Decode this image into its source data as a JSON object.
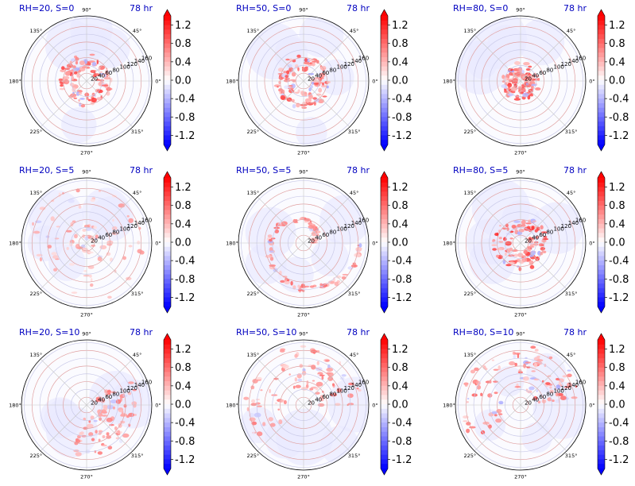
{
  "chart_data": {
    "type": "polar-contour-grid",
    "rows": 3,
    "cols": 3,
    "radial_ticks": [
      "20",
      "40",
      "60",
      "80",
      "100",
      "120",
      "140",
      "160"
    ],
    "angle_labels": [
      "0°",
      "45°",
      "90°",
      "135°",
      "180°",
      "225°",
      "270°",
      "315°"
    ],
    "colorbar": {
      "ticks": [
        "1.2",
        "0.8",
        "0.4",
        "0.0",
        "-0.4",
        "-0.8",
        "-1.2"
      ],
      "min": -1.4,
      "max": 1.4,
      "extend": "both",
      "colormap": "bwr",
      "low_color": "#0000ff",
      "mid_color": "#ffffff",
      "high_color": "#ff0000"
    },
    "panels": [
      {
        "title": "RH=20, S=0",
        "time": "78 hr",
        "pattern": "ring",
        "intensity": 0.8
      },
      {
        "title": "RH=50, S=0",
        "time": "78 hr",
        "pattern": "ring",
        "intensity": 0.75
      },
      {
        "title": "RH=80, S=0",
        "time": "78 hr",
        "pattern": "inner",
        "intensity": 0.8
      },
      {
        "title": "RH=20, S=5",
        "time": "78 hr",
        "pattern": "weak",
        "intensity": 0.45
      },
      {
        "title": "RH=50, S=5",
        "time": "78 hr",
        "pattern": "spiral",
        "intensity": 0.65
      },
      {
        "title": "RH=80, S=5",
        "time": "78 hr",
        "pattern": "ring",
        "intensity": 0.85
      },
      {
        "title": "RH=20, S=10",
        "time": "78 hr",
        "pattern": "arc",
        "intensity": 0.55
      },
      {
        "title": "RH=50, S=10",
        "time": "78 hr",
        "pattern": "outer",
        "intensity": 0.6
      },
      {
        "title": "RH=80, S=10",
        "time": "78 hr",
        "pattern": "outer",
        "intensity": 0.7
      }
    ]
  }
}
